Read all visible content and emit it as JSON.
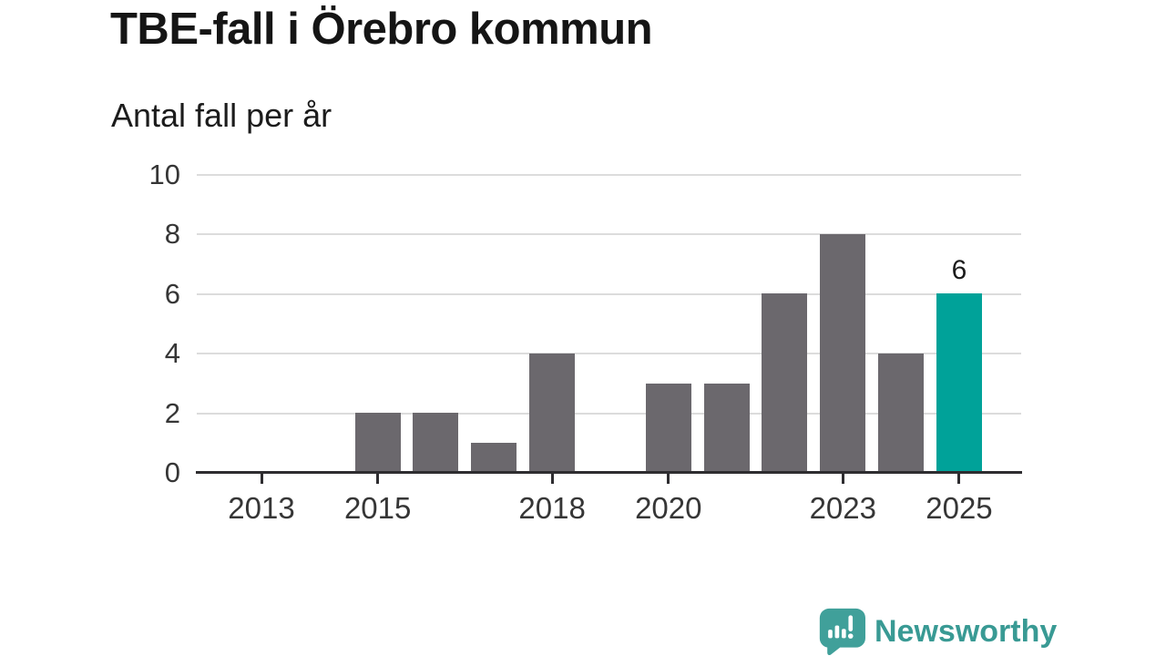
{
  "header": {
    "title": "TBE-fall i Örebro kommun",
    "subtitle": "Antal fall per år"
  },
  "chart_data": {
    "type": "bar",
    "title": "TBE-fall i Örebro kommun",
    "subtitle": "Antal fall per år",
    "categories": [
      2012,
      2013,
      2014,
      2015,
      2016,
      2017,
      2018,
      2019,
      2020,
      2021,
      2022,
      2023,
      2024,
      2025
    ],
    "values": [
      0,
      0,
      0,
      2,
      2,
      1,
      4,
      0,
      3,
      3,
      6,
      8,
      4,
      6
    ],
    "highlight_year": 2025,
    "value_labels": [
      {
        "year": 2025,
        "text": "6"
      }
    ],
    "ylim": [
      0,
      10
    ],
    "yticks": [
      "0",
      "2",
      "4",
      "6",
      "8",
      "10"
    ],
    "xticks": [
      "2013",
      "2015",
      "2018",
      "2020",
      "2023",
      "2025"
    ],
    "grid": "horizontal",
    "legend": "none",
    "colors": {
      "bar": "#6b686d",
      "highlight": "#00a299",
      "gridline": "#dcdcdc",
      "axis": "#2e2d30",
      "tick_label": "#363636",
      "value_label": "#1c1c1c"
    }
  },
  "branding": {
    "logo_text": "Newsworthy",
    "logo_icon": "bar-chart-speech-bubble-icon",
    "logo_icon_color": "#40a09a",
    "logo_text_color": "#399a94"
  }
}
